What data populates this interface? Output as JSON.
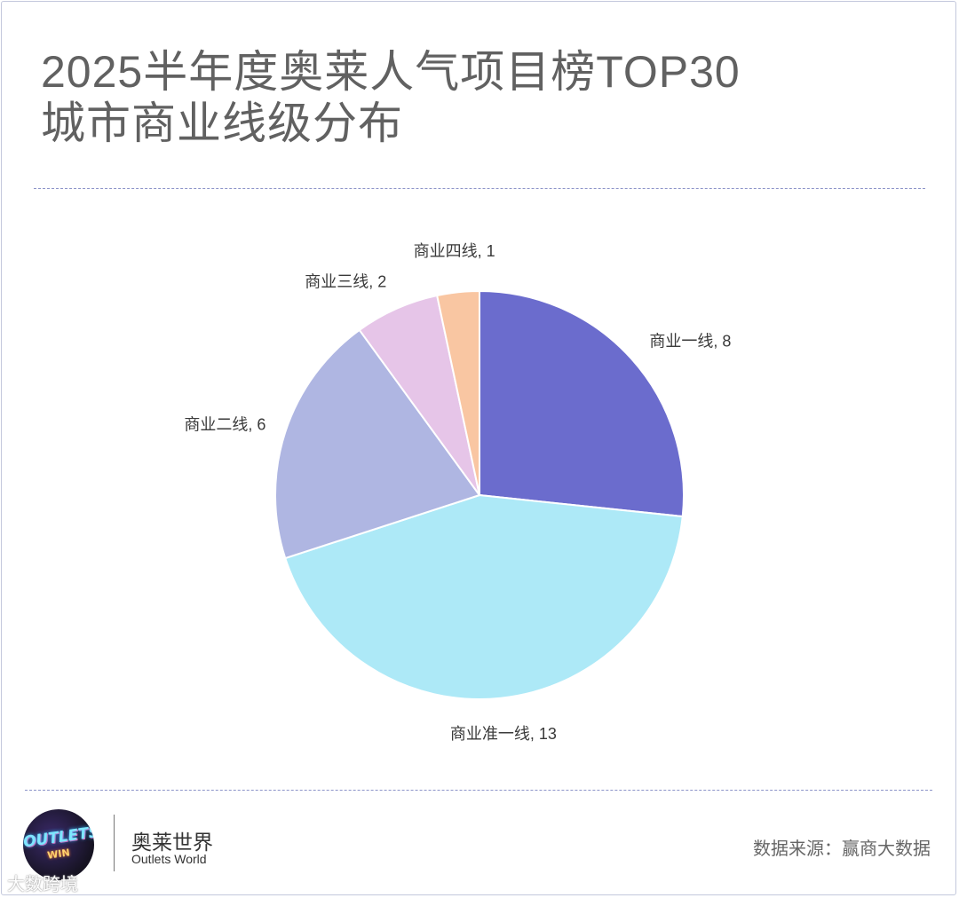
{
  "header": {
    "title_line1": "2025半年度奥莱人气项目榜TOP30",
    "title_line2": "城市商业线级分布"
  },
  "chart_data": {
    "type": "pie",
    "title": "2025半年度奥莱人气项目榜TOP30 城市商业线级分布",
    "slices": [
      {
        "label": "商业一线",
        "value": 8,
        "display": "商业一线, 8",
        "color": "#6b6ccd"
      },
      {
        "label": "商业准一线",
        "value": 13,
        "display": "商业准一线, 13",
        "color": "#ade9f7"
      },
      {
        "label": "商业二线",
        "value": 6,
        "display": "商业二线, 6",
        "color": "#afb6e2"
      },
      {
        "label": "商业三线",
        "value": 2,
        "display": "商业三线, 2",
        "color": "#e6c5e8"
      },
      {
        "label": "商业四线",
        "value": 1,
        "display": "商业四线, 1",
        "color": "#f9c6a2"
      }
    ],
    "start_angle": "12 o'clock",
    "direction": "clockwise",
    "legend": "none"
  },
  "footer": {
    "logo_text": "OUTLETS",
    "logo_sub": "WIN",
    "brand_cn": "奥莱世界",
    "brand_en": "Outlets World",
    "source": "数据来源：赢商大数据",
    "watermark": "大数跨境"
  }
}
